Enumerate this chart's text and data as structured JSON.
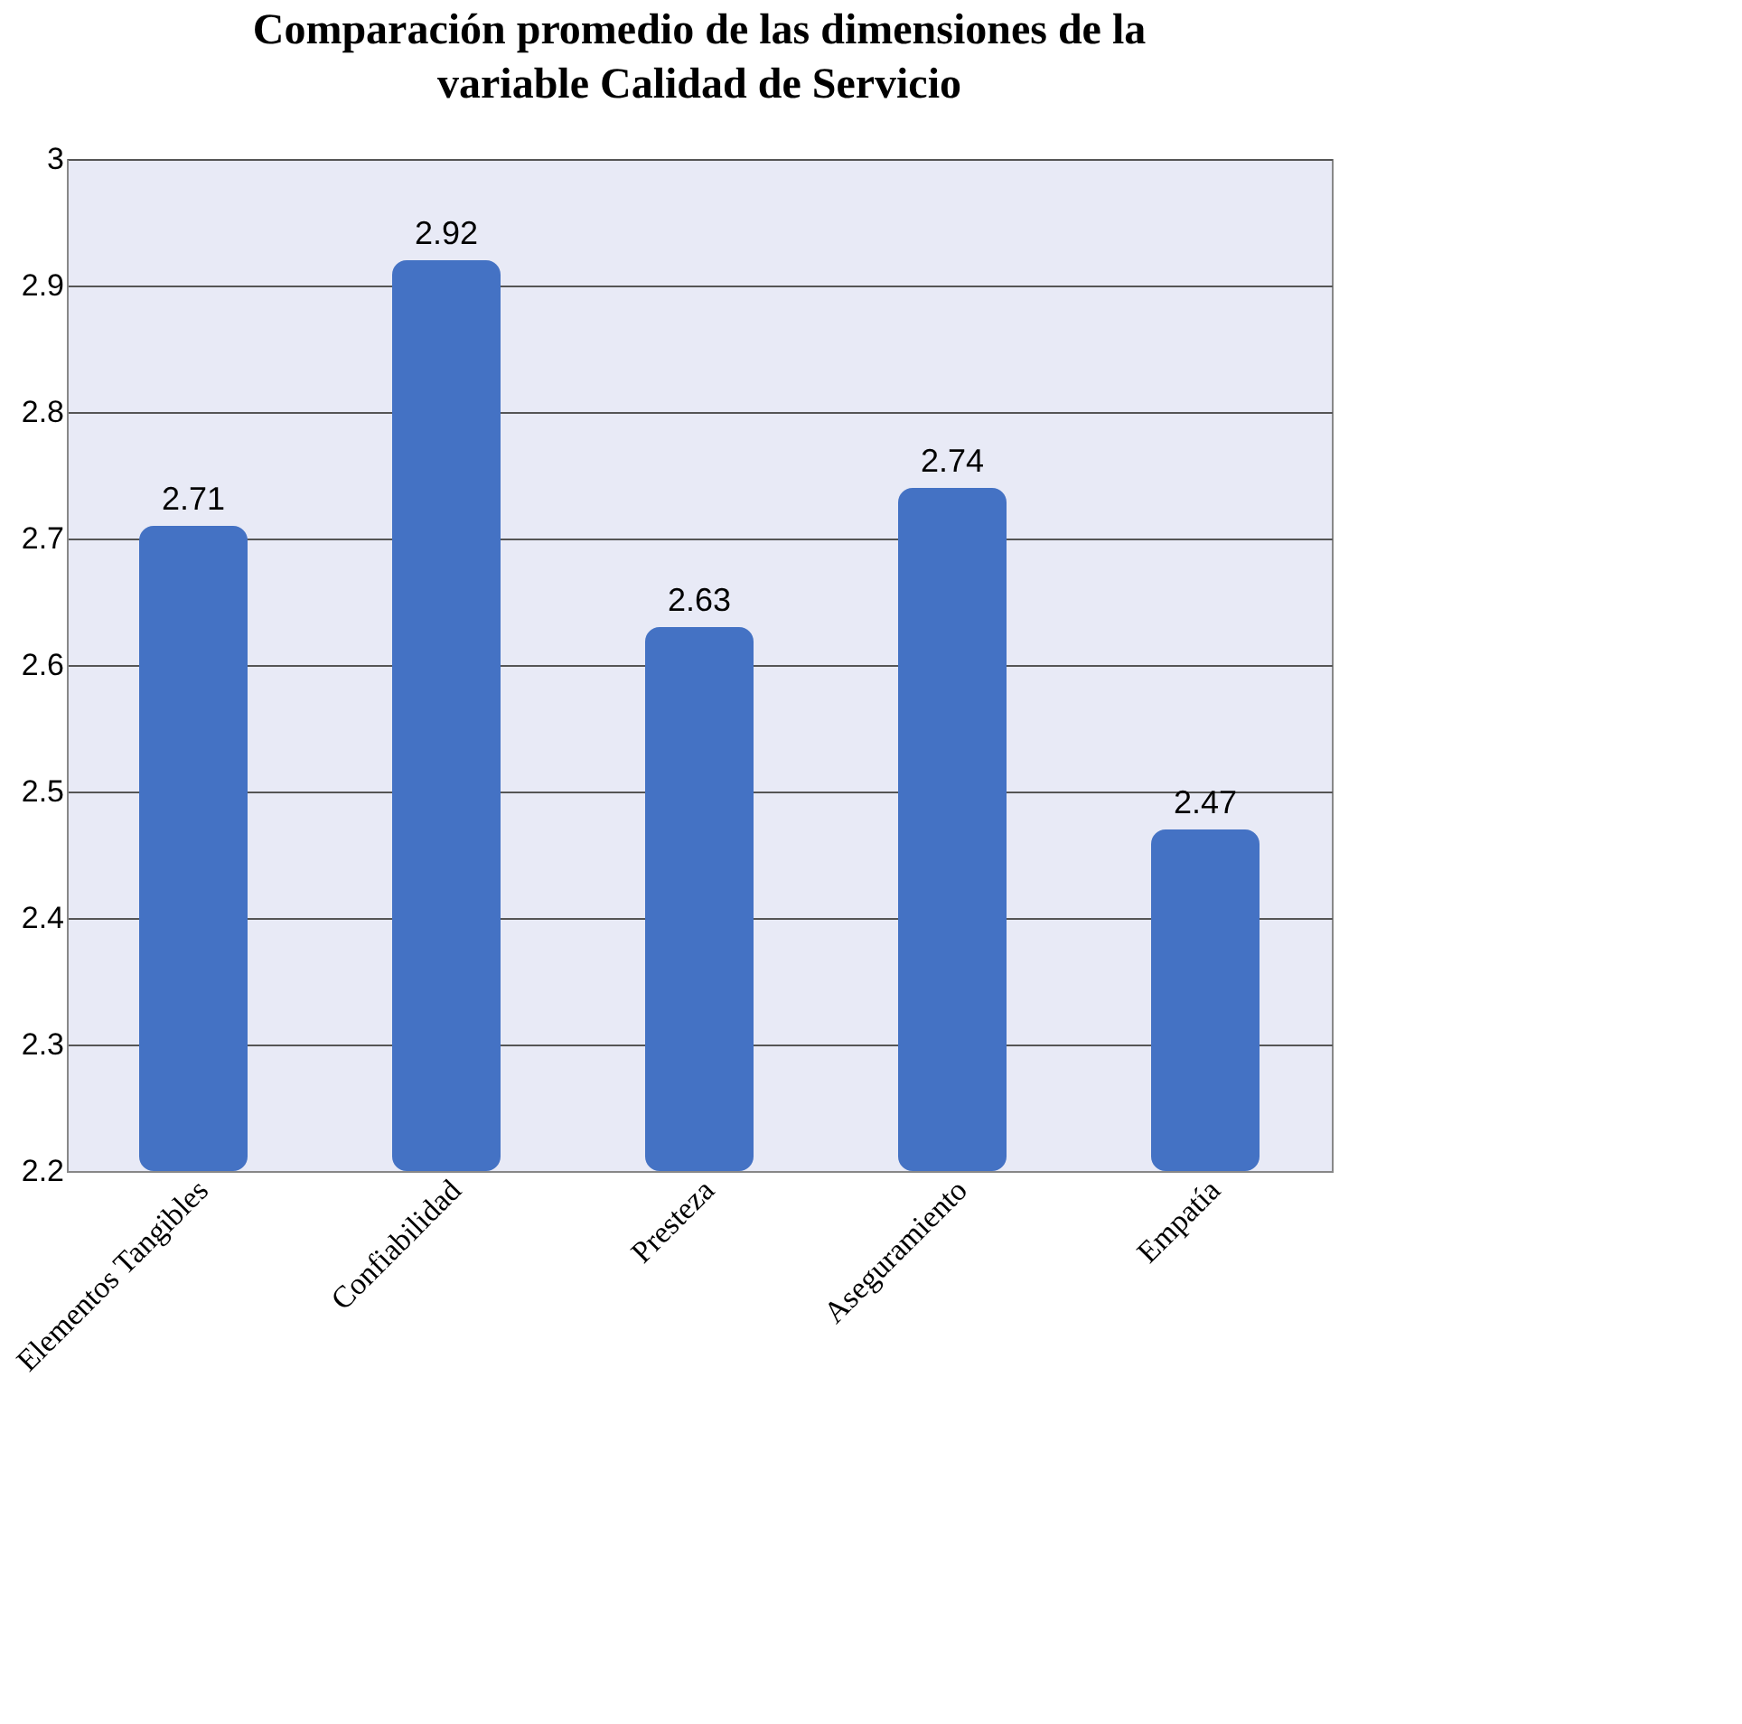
{
  "chart_data": {
    "type": "bar",
    "title": "Comparación promedio de las dimensiones de la variable Calidad de Servicio",
    "categories": [
      "Elementos Tangibles",
      "Confiabilidad",
      "Presteza",
      "Aseguramiento",
      "Empatía"
    ],
    "values": [
      2.71,
      2.92,
      2.63,
      2.74,
      2.47
    ],
    "color": "#4472c4",
    "ylim": [
      2.2,
      3
    ],
    "yticks": [
      2.2,
      2.3,
      2.4,
      2.5,
      2.6,
      2.7,
      2.8,
      2.9,
      3
    ],
    "grid": "y",
    "data_labels": true
  }
}
